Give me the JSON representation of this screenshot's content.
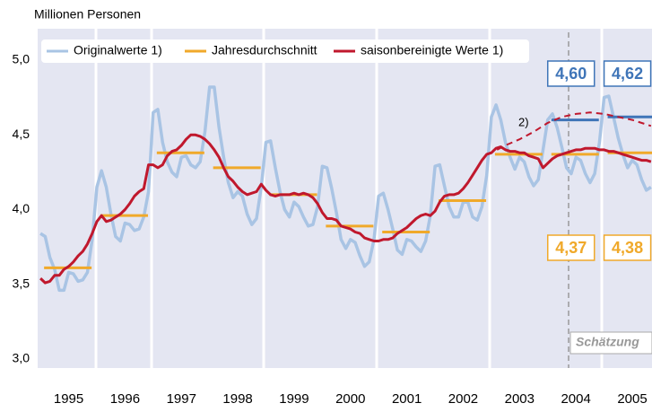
{
  "chart_data": {
    "type": "line",
    "title": "Millionen Personen",
    "xlim": [
      1994.95,
      2005.85
    ],
    "ylim": [
      3,
      5
    ],
    "yticks": [
      {
        "value": 3,
        "label": "3,0"
      },
      {
        "value": 3.5,
        "label": "3,5"
      },
      {
        "value": 4,
        "label": "4,0"
      },
      {
        "value": 4.5,
        "label": "4,5"
      },
      {
        "value": 5,
        "label": "5,0"
      }
    ],
    "xticks": [
      {
        "value": 1995.5,
        "label": "1995"
      },
      {
        "value": 1996.5,
        "label": "1996"
      },
      {
        "value": 1997.5,
        "label": "1997"
      },
      {
        "value": 1998.5,
        "label": "1998"
      },
      {
        "value": 1999.5,
        "label": "1999"
      },
      {
        "value": 2000.5,
        "label": "2000"
      },
      {
        "value": 2001.5,
        "label": "2001"
      },
      {
        "value": 2002.5,
        "label": "2002"
      },
      {
        "value": 2003.5,
        "label": "2003"
      },
      {
        "value": 2004.5,
        "label": "2004"
      },
      {
        "value": 2005.5,
        "label": "2005"
      }
    ],
    "grid": false,
    "x": [
      1995,
      1995.083,
      1995.167,
      1995.25,
      1995.333,
      1995.417,
      1995.5,
      1995.583,
      1995.667,
      1995.75,
      1995.833,
      1995.917,
      1996,
      1996.083,
      1996.167,
      1996.25,
      1996.333,
      1996.417,
      1996.5,
      1996.583,
      1996.667,
      1996.75,
      1996.833,
      1996.917,
      1997,
      1997.083,
      1997.167,
      1997.25,
      1997.333,
      1997.417,
      1997.5,
      1997.583,
      1997.667,
      1997.75,
      1997.833,
      1997.917,
      1998,
      1998.083,
      1998.167,
      1998.25,
      1998.333,
      1998.417,
      1998.5,
      1998.583,
      1998.667,
      1998.75,
      1998.833,
      1998.917,
      1999,
      1999.083,
      1999.167,
      1999.25,
      1999.333,
      1999.417,
      1999.5,
      1999.583,
      1999.667,
      1999.75,
      1999.833,
      1999.917,
      2000,
      2000.083,
      2000.167,
      2000.25,
      2000.333,
      2000.417,
      2000.5,
      2000.583,
      2000.667,
      2000.75,
      2000.833,
      2000.917,
      2001,
      2001.083,
      2001.167,
      2001.25,
      2001.333,
      2001.417,
      2001.5,
      2001.583,
      2001.667,
      2001.75,
      2001.833,
      2001.917,
      2002,
      2002.083,
      2002.167,
      2002.25,
      2002.333,
      2002.417,
      2002.5,
      2002.583,
      2002.667,
      2002.75,
      2002.833,
      2002.917,
      2003,
      2003.083,
      2003.167,
      2003.25,
      2003.333,
      2003.417,
      2003.5,
      2003.583,
      2003.667,
      2003.75,
      2003.833,
      2003.917,
      2004,
      2004.083,
      2004.167,
      2004.25,
      2004.333,
      2004.417,
      2004.5,
      2004.583,
      2004.667,
      2004.75,
      2004.833,
      2004.917,
      2005,
      2005.083,
      2005.167,
      2005.25,
      2005.333,
      2005.417,
      2005.5,
      2005.583,
      2005.667,
      2005.75,
      2005.833
    ],
    "series": [
      {
        "name": "Originalwerte 1)",
        "color": "#a9c4e4",
        "style": "line",
        "values": [
          3.84,
          3.82,
          3.68,
          3.6,
          3.46,
          3.46,
          3.58,
          3.57,
          3.52,
          3.53,
          3.58,
          3.8,
          4.15,
          4.26,
          4.15,
          3.97,
          3.82,
          3.79,
          3.91,
          3.9,
          3.86,
          3.87,
          3.95,
          4.12,
          4.65,
          4.67,
          4.45,
          4.32,
          4.25,
          4.22,
          4.35,
          4.36,
          4.3,
          4.28,
          4.32,
          4.52,
          4.82,
          4.82,
          4.55,
          4.35,
          4.18,
          4.08,
          4.12,
          4.09,
          3.97,
          3.9,
          3.94,
          4.15,
          4.45,
          4.46,
          4.28,
          4.12,
          4.0,
          3.95,
          4.05,
          4.02,
          3.95,
          3.89,
          3.9,
          4.02,
          4.29,
          4.28,
          4.14,
          3.98,
          3.8,
          3.74,
          3.8,
          3.78,
          3.69,
          3.62,
          3.65,
          3.8,
          4.09,
          4.11,
          4.0,
          3.87,
          3.73,
          3.7,
          3.8,
          3.79,
          3.75,
          3.72,
          3.79,
          3.96,
          4.29,
          4.3,
          4.16,
          4.02,
          3.95,
          3.95,
          4.05,
          4.05,
          3.95,
          3.93,
          4.02,
          4.23,
          4.62,
          4.7,
          4.6,
          4.45,
          4.35,
          4.27,
          4.35,
          4.32,
          4.22,
          4.16,
          4.2,
          4.4,
          4.6,
          4.64,
          4.55,
          4.42,
          4.28,
          4.24,
          4.35,
          4.33,
          4.24,
          4.18,
          4.24,
          4.45,
          4.75,
          4.76,
          4.62,
          4.48,
          4.37,
          4.28,
          4.33,
          4.3,
          4.2,
          4.13,
          4.15
        ]
      },
      {
        "name": "Jahresdurchschnitt",
        "color": "#f0a92a",
        "style": "segments",
        "x": [
          1995,
          1996,
          1997,
          1998,
          1999,
          2000,
          2001,
          2002,
          2003,
          2004,
          2005
        ],
        "values": [
          3.61,
          3.96,
          4.38,
          4.28,
          4.1,
          3.89,
          3.85,
          4.06,
          4.37,
          4.37,
          4.38
        ],
        "value_labels": [
          null,
          null,
          null,
          null,
          null,
          null,
          null,
          null,
          null,
          "4,37",
          "4,38"
        ]
      },
      {
        "name": "saisonbereinigte Werte 1)",
        "color": "#c0182d",
        "style": "line",
        "values": [
          3.54,
          3.51,
          3.52,
          3.56,
          3.56,
          3.6,
          3.62,
          3.65,
          3.69,
          3.72,
          3.77,
          3.84,
          3.92,
          3.96,
          3.92,
          3.93,
          3.95,
          3.97,
          4.0,
          4.04,
          4.09,
          4.12,
          4.14,
          4.3,
          4.3,
          4.28,
          4.3,
          4.36,
          4.39,
          4.4,
          4.43,
          4.47,
          4.5,
          4.5,
          4.49,
          4.47,
          4.44,
          4.4,
          4.35,
          4.28,
          4.22,
          4.19,
          4.15,
          4.12,
          4.1,
          4.11,
          4.12,
          4.17,
          4.13,
          4.1,
          4.09,
          4.1,
          4.1,
          4.1,
          4.11,
          4.1,
          4.11,
          4.1,
          4.08,
          4.04,
          3.98,
          3.94,
          3.94,
          3.93,
          3.89,
          3.88,
          3.87,
          3.85,
          3.84,
          3.81,
          3.8,
          3.79,
          3.79,
          3.8,
          3.8,
          3.81,
          3.84,
          3.86,
          3.88,
          3.91,
          3.94,
          3.96,
          3.97,
          3.96,
          3.99,
          4.05,
          4.09,
          4.1,
          4.1,
          4.11,
          4.14,
          4.18,
          4.23,
          4.28,
          4.33,
          4.37,
          4.38,
          4.41,
          4.42,
          4.4,
          4.39,
          4.39,
          4.38,
          4.38,
          4.36,
          4.35,
          4.34,
          4.28,
          4.31,
          4.34,
          4.36,
          4.37,
          4.38,
          4.39,
          4.4,
          4.4,
          4.41,
          4.41,
          4.41,
          4.4,
          4.4,
          4.39,
          4.39,
          4.38,
          4.37,
          4.36,
          4.35,
          4.34,
          4.33,
          4.33,
          4.32
        ]
      },
      {
        "color": "#3f75b8",
        "style": "segments",
        "x": [
          2004,
          2005
        ],
        "values": [
          4.6,
          4.62
        ],
        "value_labels": [
          "4,60",
          "4,62"
        ]
      },
      {
        "color": "#c0182d",
        "style": "line",
        "dashed": true,
        "x": [
          2003.1,
          2003.25,
          2003.5,
          2003.75,
          2004,
          2004.25,
          2004.5,
          2004.75,
          2005,
          2005.25,
          2005.5,
          2005.833
        ],
        "values": [
          4.4,
          4.43,
          4.47,
          4.52,
          4.58,
          4.62,
          4.64,
          4.65,
          4.64,
          4.62,
          4.6,
          4.56
        ]
      }
    ],
    "annotations": [
      "2)",
      "Schätzung"
    ]
  }
}
